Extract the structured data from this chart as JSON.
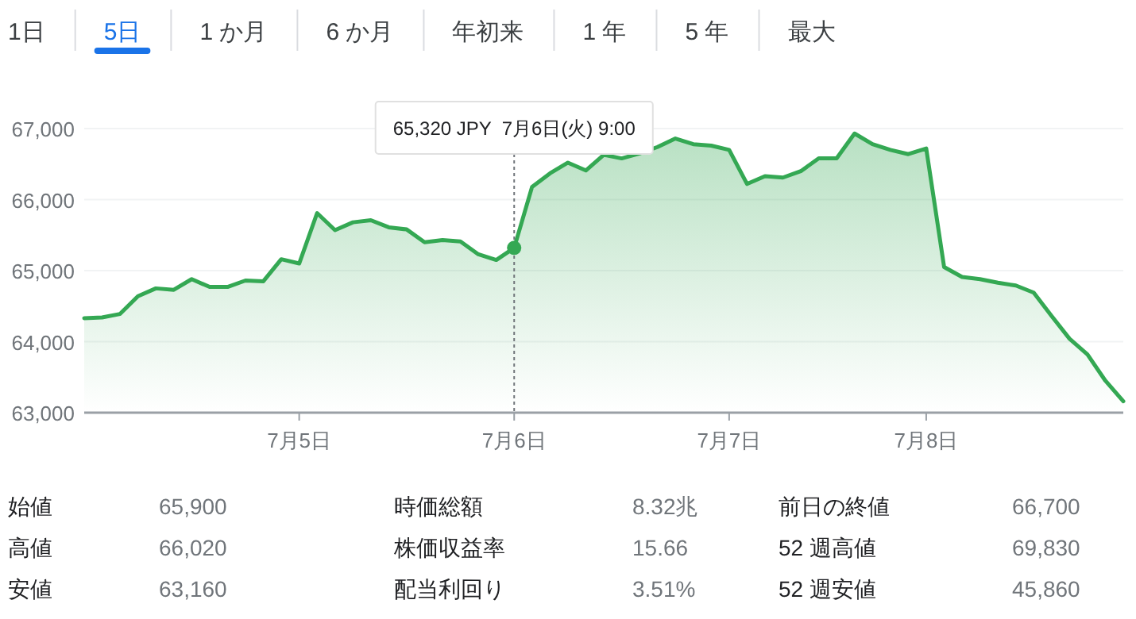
{
  "chart_data": [
    {
      "type": "other",
      "annotations": [
        "1日",
        "5日",
        "1 か月",
        "6 か月",
        "年初来",
        "1 年",
        "5 年",
        "最大"
      ]
    },
    {
      "type": "area",
      "color": "#34a853",
      "categories": [
        null,
        null,
        null,
        null,
        null,
        null,
        null,
        null,
        null,
        null,
        null,
        null,
        "7月5日",
        null,
        null,
        null,
        null,
        null,
        null,
        null,
        null,
        null,
        null,
        null,
        "7月6日",
        null,
        null,
        null,
        null,
        null,
        null,
        null,
        null,
        null,
        null,
        null,
        "7月7日",
        null,
        null,
        null,
        null,
        null,
        null,
        null,
        null,
        null,
        null,
        "7月8日",
        null,
        null,
        null,
        null,
        null,
        null,
        null,
        null,
        null,
        null,
        null
      ],
      "values": [
        64330,
        64340,
        64390,
        64640,
        64750,
        64730,
        64880,
        64770,
        64770,
        64860,
        64850,
        65160,
        65100,
        65810,
        65570,
        65680,
        65710,
        65610,
        65580,
        65400,
        65430,
        65410,
        65230,
        65150,
        65320,
        66180,
        66370,
        66520,
        66410,
        66630,
        66580,
        66650,
        66740,
        66860,
        66780,
        66760,
        66700,
        66220,
        66330,
        66310,
        66400,
        66580,
        66580,
        66930,
        66780,
        66700,
        66640,
        66720,
        65050,
        64910,
        64880,
        64830,
        64790,
        64690,
        64360,
        64040,
        63820,
        63450,
        63160
      ],
      "ylim": [
        63000,
        67000
      ],
      "yticks": [
        {
          "value": 63000,
          "label": "63,000"
        },
        {
          "value": 64000,
          "label": "64,000"
        },
        {
          "value": 65000,
          "label": "65,000"
        },
        {
          "value": 66000,
          "label": "66,000"
        },
        {
          "value": 67000,
          "label": "67,000"
        }
      ],
      "grid": "y",
      "ref_lines": [
        {
          "axis": "x",
          "value": "7月6日",
          "line_style": "dotted"
        }
      ],
      "annotations": [
        "65,320 JPY  7月6日(火) 9:00"
      ]
    },
    {
      "type": "other",
      "annotations": [
        "始値",
        "65,900",
        "時価総額",
        "8.32兆",
        "前日の終値",
        "66,700",
        "高値",
        "66,020",
        "株価収益率",
        "15.66",
        "52 週高値",
        "69,830",
        "安値",
        "63,160",
        "配当利回り",
        "3.51%",
        "52 週安値",
        "45,860"
      ]
    }
  ]
}
